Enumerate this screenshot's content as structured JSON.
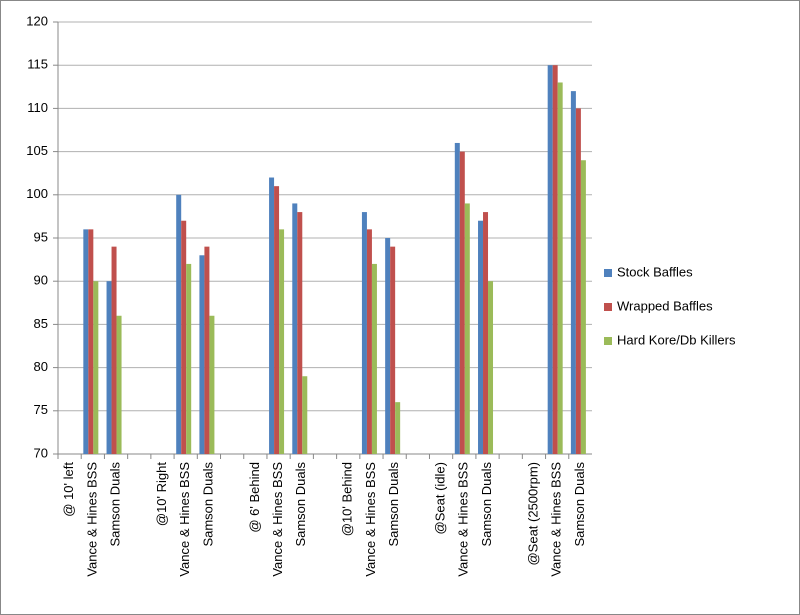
{
  "chart_data": {
    "type": "bar",
    "categories": [
      "@ 10' left",
      "Vance & Hines BSS",
      "Samson Duals",
      null,
      "@10' Right",
      "Vance & Hines BSS",
      "Samson Duals",
      null,
      "@ 6' Behind",
      "Vance & Hines BSS",
      "Samson Duals",
      null,
      "@10' Behind",
      "Vance & Hines BSS",
      "Samson Duals",
      null,
      "@Seat (idle)",
      "Vance & Hines BSS",
      "Samson Duals",
      null,
      "@Seat (2500rpm)",
      "Vance & Hines BSS",
      "Samson Duals"
    ],
    "series": [
      {
        "name": "Stock Baffles",
        "color": "#4f81bd",
        "values": [
          null,
          96,
          90,
          null,
          null,
          100,
          93,
          null,
          null,
          102,
          99,
          null,
          null,
          98,
          95,
          null,
          null,
          106,
          97,
          null,
          null,
          115,
          112
        ]
      },
      {
        "name": "Wrapped Baffles",
        "color": "#c0504d",
        "values": [
          null,
          96,
          94,
          null,
          null,
          97,
          94,
          null,
          null,
          101,
          98,
          null,
          null,
          96,
          94,
          null,
          null,
          105,
          98,
          null,
          null,
          115,
          110
        ]
      },
      {
        "name": "Hard Kore/Db Killers",
        "color": "#9bbb59",
        "values": [
          null,
          90,
          86,
          null,
          null,
          92,
          86,
          null,
          null,
          96,
          79,
          null,
          null,
          92,
          76,
          null,
          null,
          99,
          90,
          null,
          null,
          113,
          104
        ]
      }
    ],
    "ylim": [
      70,
      120
    ],
    "yticks": [
      70,
      75,
      80,
      85,
      90,
      95,
      100,
      105,
      110,
      115,
      120
    ],
    "grid": true,
    "legend": "right"
  }
}
